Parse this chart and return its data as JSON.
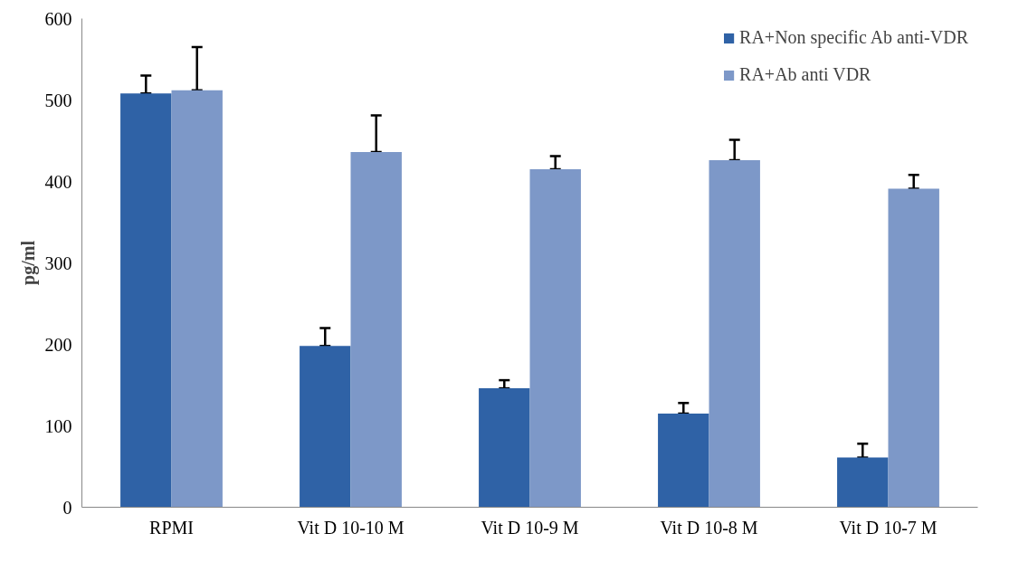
{
  "chart_data": {
    "type": "bar",
    "ylabel": "pg/ml",
    "categories": [
      "RPMI",
      "Vit D 10-10 M",
      "Vit D 10-9 M",
      "Vit D 10-8 M",
      "Vit D 10-7 M"
    ],
    "series": [
      {
        "name": "RA+Non specific Ab anti-VDR",
        "color": "#2f62a6",
        "values": [
          508,
          198,
          146,
          115,
          61
        ],
        "errors": [
          [
            508,
            530
          ],
          [
            198,
            220
          ],
          [
            146,
            156
          ],
          [
            115,
            128
          ],
          [
            61,
            78
          ]
        ]
      },
      {
        "name": "RA+Ab anti VDR",
        "color": "#7d98c8",
        "values": [
          512,
          436,
          415,
          426,
          391
        ],
        "errors": [
          [
            512,
            565
          ],
          [
            436,
            481
          ],
          [
            415,
            431
          ],
          [
            426,
            451
          ],
          [
            391,
            408
          ]
        ]
      }
    ],
    "ylim": [
      0,
      600
    ],
    "yticks": [
      0,
      100,
      200,
      300,
      400,
      500,
      600
    ],
    "grid": false,
    "legend": "top right"
  }
}
